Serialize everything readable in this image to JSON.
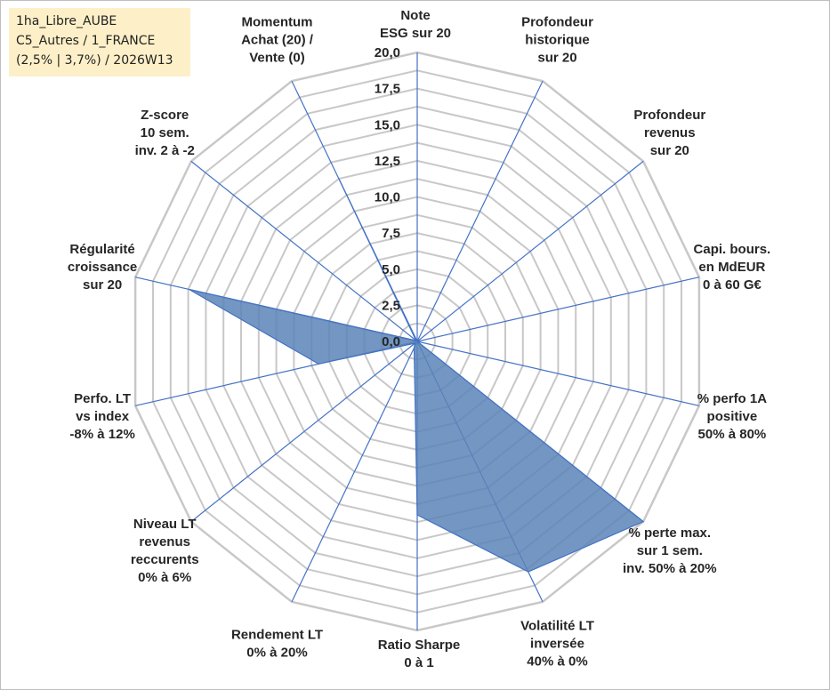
{
  "info_box": {
    "line1": "1ha_Libre_AUBE",
    "line2": "C5_Autres / 1_FRANCE",
    "line3": "(2,5% | 3,7%) / 2026W13"
  },
  "colors": {
    "grid": "#c8c8c8",
    "spoke": "#4472c4",
    "fill": "#5b84b9",
    "stroke": "#4472c4"
  },
  "chart_data": {
    "type": "radar",
    "rmax": 20,
    "ticks": [
      0,
      2.5,
      5,
      7.5,
      10,
      12.5,
      15,
      17.5,
      20
    ],
    "tick_labels": [
      "0,0",
      "2,5",
      "5,0",
      "7,5",
      "10,0",
      "12,5",
      "15,0",
      "17,5",
      "20,0"
    ],
    "axes": [
      {
        "label": [
          "Note",
          "ESG sur 20"
        ],
        "value": 0
      },
      {
        "label": [
          "Profondeur",
          "historique",
          "sur 20"
        ],
        "value": 0
      },
      {
        "label": [
          "Profondeur",
          "revenus",
          "sur 20"
        ],
        "value": 0
      },
      {
        "label": [
          "Capi. bours.",
          "en MdEUR",
          "0 à 60 G€"
        ],
        "value": 0
      },
      {
        "label": [
          "% perfo 1A",
          "positive",
          "50% à 80%"
        ],
        "value": 0
      },
      {
        "label": [
          "% perte max.",
          "sur 1 sem.",
          "inv. 50% à 20%"
        ],
        "value": 20
      },
      {
        "label": [
          "Volatilité LT",
          "inversée",
          "40% à 0%"
        ],
        "value": 17.7
      },
      {
        "label": [
          "Ratio Sharpe",
          "0 à 1"
        ],
        "value": 12
      },
      {
        "label": [
          "Rendement LT",
          "0% à 20%"
        ],
        "value": 0.5
      },
      {
        "label": [
          "Niveau LT",
          "revenus",
          "reccurents",
          "0% à 6%"
        ],
        "value": 0.2
      },
      {
        "label": [
          "Perfo. LT",
          "vs index",
          "-8% à 12%"
        ],
        "value": 7
      },
      {
        "label": [
          "Régularité",
          "croissance",
          "sur 20"
        ],
        "value": 16.2
      },
      {
        "label": [
          "Z-score",
          "10 sem.",
          "inv. 2 à -2"
        ],
        "value": 0.1
      },
      {
        "label": [
          "Momentum",
          "Achat (20) /",
          "Vente (0)"
        ],
        "value": 12.5
      }
    ]
  }
}
